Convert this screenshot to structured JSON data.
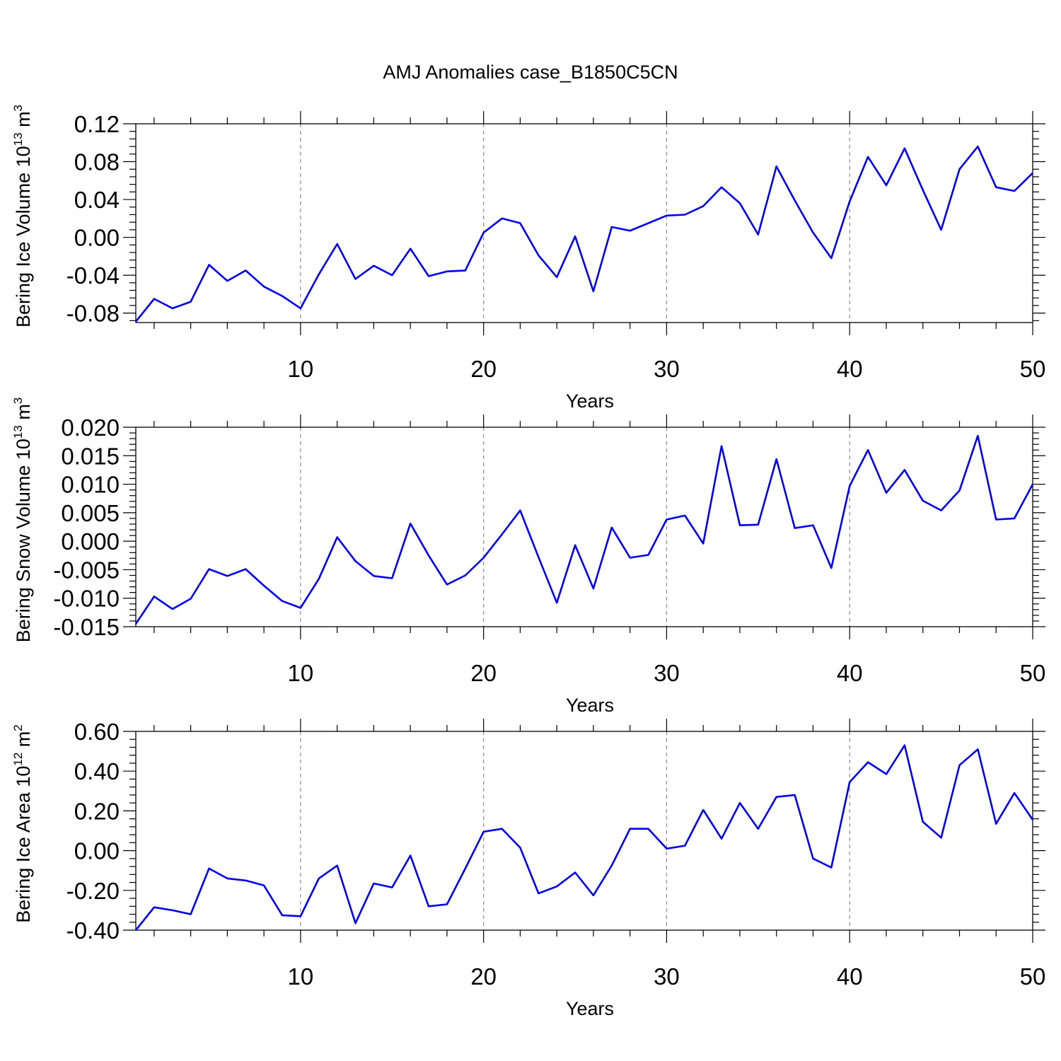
{
  "title": "AMJ Anomalies case_B1850C5CN",
  "colors": {
    "line": "#0000ee",
    "grid": "#888888",
    "axis": "#000000"
  },
  "chart_data": [
    {
      "type": "line",
      "title": "",
      "xlabel": "Years",
      "ylabel": "Bering Ice Volume 10",
      "ylabel_sup": "13",
      "ylabel_unit": "m",
      "ylabel_unit_sup": "3",
      "xlim": [
        1,
        50
      ],
      "ylim": [
        -0.09,
        0.12
      ],
      "xticks": [
        10,
        20,
        30,
        40,
        50
      ],
      "xtick_labels": [
        "10",
        "20",
        "30",
        "40",
        "50"
      ],
      "yticks": [
        -0.08,
        -0.04,
        0.0,
        0.04,
        0.08,
        0.12
      ],
      "ytick_labels": [
        "-0.08",
        "-0.04",
        "0.00",
        "0.04",
        "0.08",
        "0.12"
      ],
      "grid": "vertical dashed at major x ticks",
      "x": [
        1,
        2,
        3,
        4,
        5,
        6,
        7,
        8,
        9,
        10,
        11,
        12,
        13,
        14,
        15,
        16,
        17,
        18,
        19,
        20,
        21,
        22,
        23,
        24,
        25,
        26,
        27,
        28,
        29,
        30,
        31,
        32,
        33,
        34,
        35,
        36,
        37,
        38,
        39,
        40,
        41,
        42,
        43,
        44,
        45,
        46,
        47,
        48,
        49,
        50
      ],
      "series": [
        {
          "values": [
            -0.089,
            -0.065,
            -0.075,
            -0.068,
            -0.029,
            -0.046,
            -0.035,
            -0.052,
            -0.062,
            -0.075,
            -0.039,
            -0.007,
            -0.044,
            -0.03,
            -0.04,
            -0.012,
            -0.041,
            -0.036,
            -0.035,
            0.005,
            0.02,
            0.015,
            -0.019,
            -0.042,
            0.001,
            -0.057,
            0.011,
            0.007,
            0.015,
            0.023,
            0.024,
            0.033,
            0.053,
            0.036,
            0.003,
            0.075,
            0.039,
            0.005,
            -0.022,
            0.038,
            0.085,
            0.055,
            0.094,
            0.05,
            0.008,
            0.072,
            0.096,
            0.053,
            0.049,
            0.068
          ]
        }
      ]
    },
    {
      "type": "line",
      "title": "",
      "xlabel": "Years",
      "ylabel": "Bering Snow Volume 10",
      "ylabel_sup": "13",
      "ylabel_unit": "m",
      "ylabel_unit_sup": "3",
      "xlim": [
        1,
        50
      ],
      "ylim": [
        -0.015,
        0.02
      ],
      "xticks": [
        10,
        20,
        30,
        40,
        50
      ],
      "xtick_labels": [
        "10",
        "20",
        "30",
        "40",
        "50"
      ],
      "yticks": [
        -0.015,
        -0.01,
        -0.005,
        0.0,
        0.005,
        0.01,
        0.015,
        0.02
      ],
      "ytick_labels": [
        "-0.015",
        "-0.010",
        "-0.005",
        "0.000",
        "0.005",
        "0.010",
        "0.015",
        "0.020"
      ],
      "grid": "vertical dashed at major x ticks",
      "x": [
        1,
        2,
        3,
        4,
        5,
        6,
        7,
        8,
        9,
        10,
        11,
        12,
        13,
        14,
        15,
        16,
        17,
        18,
        19,
        20,
        21,
        22,
        23,
        24,
        25,
        26,
        27,
        28,
        29,
        30,
        31,
        32,
        33,
        34,
        35,
        36,
        37,
        38,
        39,
        40,
        41,
        42,
        43,
        44,
        45,
        46,
        47,
        48,
        49,
        50
      ],
      "series": [
        {
          "values": [
            -0.0145,
            -0.0097,
            -0.0119,
            -0.0101,
            -0.0049,
            -0.0061,
            -0.0049,
            -0.0078,
            -0.0105,
            -0.0117,
            -0.0066,
            0.0007,
            -0.0035,
            -0.0061,
            -0.0065,
            0.0031,
            -0.0025,
            -0.0076,
            -0.006,
            -0.0029,
            0.0012,
            0.0054,
            -0.0028,
            -0.0108,
            -0.0007,
            -0.0083,
            0.0024,
            -0.0029,
            -0.0024,
            0.0038,
            0.0045,
            -0.0004,
            0.0167,
            0.0028,
            0.0029,
            0.0144,
            0.0023,
            0.0028,
            -0.0047,
            0.0097,
            0.016,
            0.0085,
            0.0125,
            0.0071,
            0.0054,
            0.0089,
            0.0185,
            0.0038,
            0.004,
            0.01
          ]
        }
      ]
    },
    {
      "type": "line",
      "title": "",
      "xlabel": "Years",
      "ylabel": "Bering Ice Area 10",
      "ylabel_sup": "12",
      "ylabel_unit": "m",
      "ylabel_unit_sup": "2",
      "xlim": [
        1,
        50
      ],
      "ylim": [
        -0.4,
        0.6
      ],
      "xticks": [
        10,
        20,
        30,
        40,
        50
      ],
      "xtick_labels": [
        "10",
        "20",
        "30",
        "40",
        "50"
      ],
      "yticks": [
        -0.4,
        -0.2,
        0.0,
        0.2,
        0.4,
        0.6
      ],
      "ytick_labels": [
        "-0.40",
        "-0.20",
        "0.00",
        "0.20",
        "0.40",
        "0.60"
      ],
      "grid": "vertical dashed at major x ticks",
      "x": [
        1,
        2,
        3,
        4,
        5,
        6,
        7,
        8,
        9,
        10,
        11,
        12,
        13,
        14,
        15,
        16,
        17,
        18,
        19,
        20,
        21,
        22,
        23,
        24,
        25,
        26,
        27,
        28,
        29,
        30,
        31,
        32,
        33,
        34,
        35,
        36,
        37,
        38,
        39,
        40,
        41,
        42,
        43,
        44,
        45,
        46,
        47,
        48,
        49,
        50
      ],
      "series": [
        {
          "values": [
            -0.4,
            -0.285,
            -0.3,
            -0.32,
            -0.09,
            -0.14,
            -0.15,
            -0.175,
            -0.325,
            -0.33,
            -0.14,
            -0.075,
            -0.365,
            -0.165,
            -0.185,
            -0.025,
            -0.28,
            -0.27,
            -0.09,
            0.095,
            0.11,
            0.015,
            -0.215,
            -0.18,
            -0.11,
            -0.225,
            -0.075,
            0.11,
            0.11,
            0.01,
            0.025,
            0.205,
            0.06,
            0.24,
            0.11,
            0.27,
            0.28,
            -0.04,
            -0.085,
            0.345,
            0.445,
            0.385,
            0.53,
            0.145,
            0.065,
            0.43,
            0.51,
            0.135,
            0.29,
            0.155
          ]
        }
      ]
    }
  ]
}
